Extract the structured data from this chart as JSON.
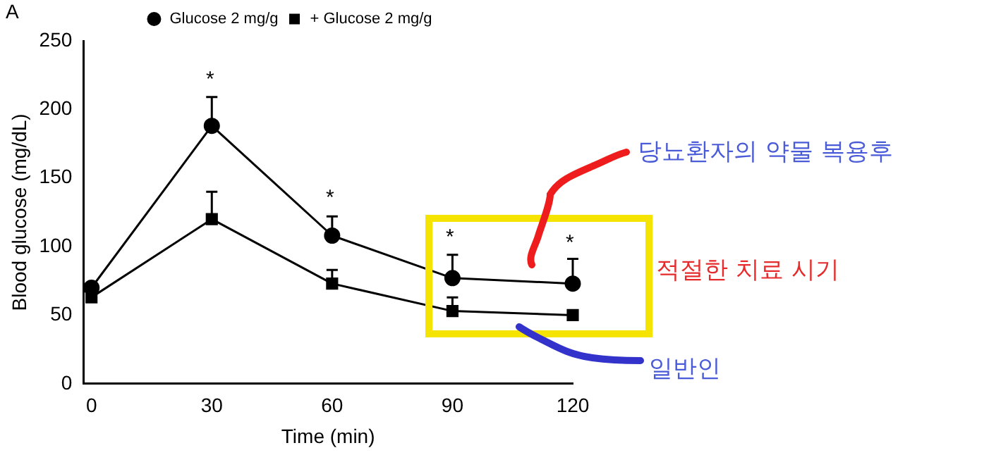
{
  "chart_data": {
    "type": "line",
    "xlabel": "Time (min)",
    "ylabel": "Blood glucose (mg/dL)",
    "x": [
      0,
      30,
      60,
      90,
      120
    ],
    "xlim": [
      -2,
      120
    ],
    "xticks": [
      0,
      30,
      60,
      90,
      120
    ],
    "ylim": [
      0,
      250
    ],
    "yticks": [
      0,
      50,
      100,
      150,
      200,
      250
    ],
    "series": [
      {
        "name": "Glucose 2 mg/g",
        "color": "#000000",
        "marker": "circle",
        "values": [
          70,
          188,
          108,
          77,
          73
        ],
        "errors": [
          null,
          [
            188,
            209
          ],
          [
            108,
            122
          ],
          [
            77,
            94
          ],
          [
            73,
            91
          ]
        ]
      },
      {
        "name": "+ Glucose 2 mg/g",
        "color": "#000000",
        "marker": "square",
        "values": [
          63,
          120,
          73,
          53,
          50
        ],
        "errors": [
          null,
          [
            120,
            140
          ],
          [
            73,
            83
          ],
          [
            53,
            63
          ],
          null
        ]
      }
    ],
    "legend": "top",
    "grid": false,
    "annotations": [
      "A",
      "*",
      "*",
      "*",
      "*",
      "당뇨환자의 약물 복용후",
      "적절한 치료 시기",
      "일반인"
    ]
  }
}
